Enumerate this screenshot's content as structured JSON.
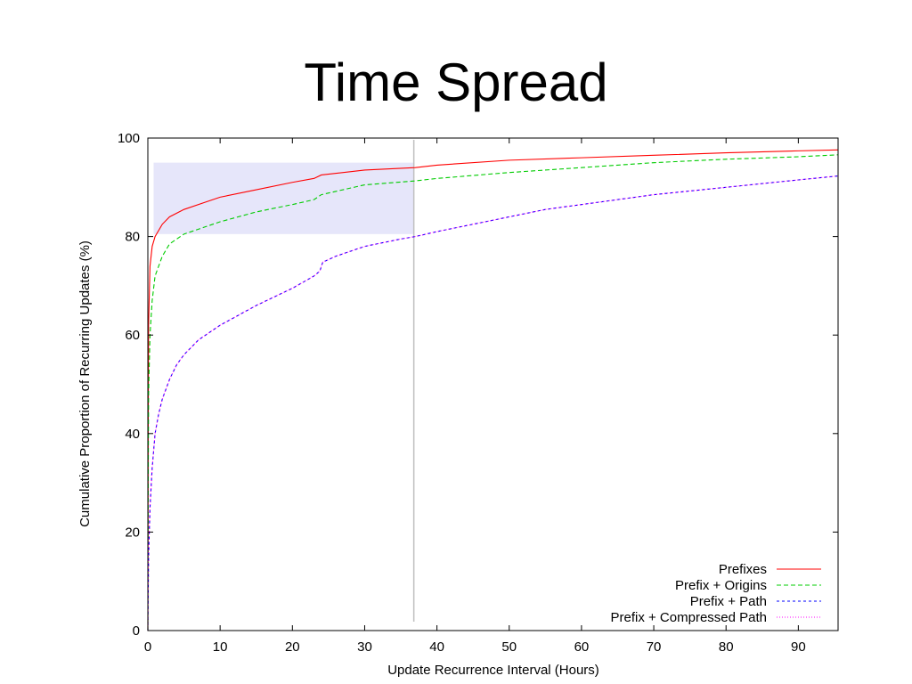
{
  "slide": {
    "title": "Time Spread"
  },
  "colors": {
    "highlight": "#e6e6fa",
    "marker": "#c0c0c0",
    "axis": "#000000"
  },
  "chart_data": {
    "type": "line",
    "title": "",
    "xlabel": "Update Recurrence Interval (Hours)",
    "ylabel": "Cumulative Proportion of Recurring Updates (%)",
    "xlim": [
      0,
      95.5
    ],
    "ylim": [
      0,
      100
    ],
    "xticks": [
      0,
      10,
      20,
      30,
      40,
      50,
      60,
      70,
      80,
      90
    ],
    "yticks": [
      0,
      20,
      40,
      60,
      80,
      100
    ],
    "grid": false,
    "legend": "bottom-right",
    "highlight_region": {
      "x": [
        0.8,
        36.8
      ],
      "y": [
        80.5,
        95
      ]
    },
    "vertical_marker_x": 36.8,
    "series": [
      {
        "name": "Prefixes",
        "color": "#ff0000",
        "dash": "",
        "points": [
          [
            0,
            0
          ],
          [
            0.05,
            40
          ],
          [
            0.1,
            62
          ],
          [
            0.3,
            74
          ],
          [
            0.6,
            78
          ],
          [
            1,
            80
          ],
          [
            2,
            82.5
          ],
          [
            3,
            84
          ],
          [
            5,
            85.5
          ],
          [
            8,
            87
          ],
          [
            10,
            88
          ],
          [
            15,
            89.5
          ],
          [
            20,
            91
          ],
          [
            23,
            91.8
          ],
          [
            24,
            92.5
          ],
          [
            30,
            93.5
          ],
          [
            37,
            94
          ],
          [
            40,
            94.5
          ],
          [
            50,
            95.5
          ],
          [
            60,
            96
          ],
          [
            70,
            96.5
          ],
          [
            80,
            97
          ],
          [
            90,
            97.4
          ],
          [
            95.5,
            97.6
          ]
        ]
      },
      {
        "name": "Prefix + Origins",
        "color": "#00cc00",
        "dash": "5,3",
        "points": [
          [
            0,
            0
          ],
          [
            0.05,
            30
          ],
          [
            0.1,
            48
          ],
          [
            0.3,
            60
          ],
          [
            0.6,
            67
          ],
          [
            1,
            72
          ],
          [
            2,
            76
          ],
          [
            3,
            78.5
          ],
          [
            5,
            80.5
          ],
          [
            8,
            82
          ],
          [
            10,
            83
          ],
          [
            15,
            85
          ],
          [
            20,
            86.5
          ],
          [
            23,
            87.5
          ],
          [
            24,
            88.5
          ],
          [
            30,
            90.5
          ],
          [
            37,
            91.3
          ],
          [
            40,
            91.8
          ],
          [
            50,
            93
          ],
          [
            60,
            94
          ],
          [
            70,
            95
          ],
          [
            80,
            95.7
          ],
          [
            90,
            96.2
          ],
          [
            95.5,
            96.6
          ]
        ]
      },
      {
        "name": "Prefix + Path",
        "color": "#0000ff",
        "dash": "3,3",
        "points": [
          [
            0,
            0
          ],
          [
            0.05,
            8
          ],
          [
            0.1,
            15
          ],
          [
            0.3,
            25
          ],
          [
            0.6,
            33
          ],
          [
            1,
            40
          ],
          [
            1.5,
            44
          ],
          [
            2,
            47
          ],
          [
            3,
            51
          ],
          [
            4,
            54
          ],
          [
            5,
            56
          ],
          [
            7,
            59
          ],
          [
            10,
            62
          ],
          [
            15,
            66
          ],
          [
            20,
            69.5
          ],
          [
            23,
            72
          ],
          [
            23.8,
            73
          ],
          [
            24.2,
            74.8
          ],
          [
            26,
            76
          ],
          [
            30,
            78
          ],
          [
            35,
            79.5
          ],
          [
            37,
            80
          ],
          [
            40,
            81
          ],
          [
            45,
            82.5
          ],
          [
            50,
            84
          ],
          [
            55,
            85.5
          ],
          [
            60,
            86.5
          ],
          [
            70,
            88.5
          ],
          [
            80,
            90
          ],
          [
            90,
            91.5
          ],
          [
            95.5,
            92.3
          ]
        ]
      },
      {
        "name": "Prefix + Compressed Path",
        "color": "#ff00ff",
        "dash": "1,2",
        "points": [
          [
            0,
            0
          ],
          [
            0.05,
            8
          ],
          [
            0.1,
            15
          ],
          [
            0.3,
            25
          ],
          [
            0.6,
            33
          ],
          [
            1,
            40
          ],
          [
            1.5,
            44
          ],
          [
            2,
            47
          ],
          [
            3,
            51
          ],
          [
            4,
            54
          ],
          [
            5,
            56
          ],
          [
            7,
            59
          ],
          [
            10,
            62
          ],
          [
            15,
            66
          ],
          [
            20,
            69.5
          ],
          [
            23,
            72
          ],
          [
            23.8,
            73
          ],
          [
            24.2,
            74.8
          ],
          [
            26,
            76
          ],
          [
            30,
            78
          ],
          [
            35,
            79.5
          ],
          [
            37,
            80
          ],
          [
            40,
            81
          ],
          [
            45,
            82.5
          ],
          [
            50,
            84
          ],
          [
            55,
            85.5
          ],
          [
            60,
            86.5
          ],
          [
            70,
            88.5
          ],
          [
            80,
            90
          ],
          [
            90,
            91.5
          ],
          [
            95.5,
            92.3
          ]
        ]
      }
    ]
  }
}
